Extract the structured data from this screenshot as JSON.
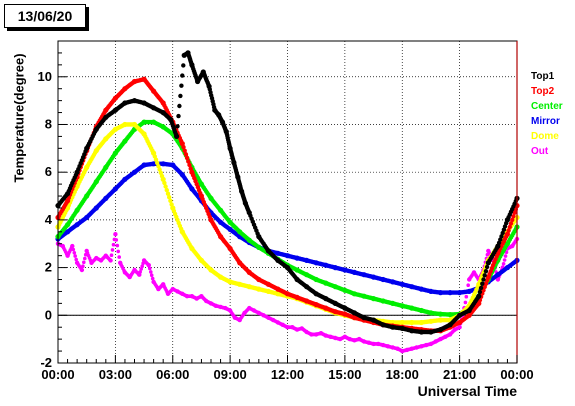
{
  "chart_data": {
    "type": "scatter",
    "title": "13/06/20",
    "xlabel": "Universal Time",
    "ylabel": "Temperature(degree)",
    "xlim": [
      0,
      24
    ],
    "ylim": [
      -2,
      11.5
    ],
    "x_tick_values": [
      0,
      3,
      6,
      9,
      12,
      15,
      18,
      21,
      24
    ],
    "x_tick_labels": [
      "00:00",
      "03:00",
      "06:00",
      "09:00",
      "12:00",
      "15:00",
      "18:00",
      "21:00",
      "00:00"
    ],
    "y_tick_values": [
      -2,
      0,
      2,
      4,
      6,
      8,
      10
    ],
    "y_tick_labels": [
      "-2",
      "0",
      "2",
      "4",
      "6",
      "8",
      "10"
    ],
    "grid": true,
    "legend_position": "right",
    "series": [
      {
        "name": "Top1",
        "color": "#000000",
        "x": [
          0,
          0.5,
          1,
          1.5,
          2,
          2.5,
          3,
          3.5,
          4,
          4.5,
          5,
          5.5,
          5.9,
          6.2,
          6.6,
          6.8,
          7,
          7.3,
          7.6,
          7.9,
          8.2,
          8.4,
          8.6,
          8.8,
          9.0,
          9.2,
          9.4,
          9.6,
          9.8,
          10.0,
          10.5,
          11,
          11.5,
          12,
          12.5,
          13,
          13.5,
          14,
          14.5,
          15,
          15.5,
          16,
          16.5,
          17,
          17.5,
          18,
          18.5,
          19,
          19.5,
          20,
          20.5,
          21,
          21.5,
          22,
          22.5,
          23,
          23.5,
          24
        ],
        "y": [
          4.6,
          5.1,
          6.0,
          7.0,
          7.8,
          8.3,
          8.6,
          8.9,
          9.0,
          8.9,
          8.7,
          8.5,
          8.2,
          7.5,
          10.9,
          11.0,
          10.5,
          9.8,
          10.2,
          9.6,
          8.6,
          8.4,
          8.1,
          7.7,
          7.0,
          6.4,
          5.8,
          5.2,
          4.7,
          4.3,
          3.3,
          2.7,
          2.3,
          2.0,
          1.5,
          1.2,
          0.9,
          0.7,
          0.5,
          0.3,
          0.1,
          -0.1,
          -0.2,
          -0.4,
          -0.5,
          -0.55,
          -0.65,
          -0.7,
          -0.7,
          -0.6,
          -0.4,
          0.0,
          0.2,
          0.8,
          2.2,
          2.9,
          4.0,
          4.9
        ]
      },
      {
        "name": "Top2",
        "color": "#ff0000",
        "x": [
          0,
          0.5,
          1,
          1.5,
          2,
          2.5,
          3,
          3.5,
          4,
          4.5,
          5,
          5.5,
          6,
          6.5,
          7,
          7.5,
          8,
          8.5,
          9,
          9.5,
          10,
          10.5,
          11,
          11.5,
          12,
          12.5,
          13,
          13.5,
          14,
          14.5,
          15,
          15.5,
          16,
          16.5,
          17,
          17.5,
          18,
          18.5,
          19,
          19.5,
          20,
          20.5,
          21,
          21.5,
          22,
          22.5,
          23,
          23.5,
          24
        ],
        "y": [
          4.1,
          4.8,
          5.8,
          6.9,
          7.9,
          8.6,
          9.1,
          9.5,
          9.8,
          9.9,
          9.4,
          8.9,
          8.1,
          7.2,
          6.0,
          5.0,
          4.0,
          3.3,
          2.8,
          2.2,
          1.8,
          1.5,
          1.3,
          1.1,
          0.9,
          0.75,
          0.6,
          0.45,
          0.3,
          0.15,
          0.05,
          -0.1,
          -0.2,
          -0.3,
          -0.4,
          -0.45,
          -0.5,
          -0.55,
          -0.6,
          -0.65,
          -0.65,
          -0.5,
          -0.3,
          0.0,
          0.5,
          1.6,
          2.6,
          3.4,
          4.6
        ]
      },
      {
        "name": "Center",
        "color": "#00ee00",
        "x": [
          0,
          0.5,
          1,
          1.5,
          2,
          2.5,
          3,
          3.5,
          4,
          4.5,
          5,
          5.5,
          6,
          6.5,
          7,
          7.5,
          8,
          8.5,
          9,
          9.5,
          10,
          10.5,
          11,
          11.5,
          12,
          12.5,
          13,
          13.5,
          14,
          14.5,
          15,
          15.5,
          16,
          16.5,
          17,
          17.5,
          18,
          18.5,
          19,
          19.5,
          20,
          20.5,
          21,
          21.5,
          22,
          22.5,
          23,
          23.5,
          24
        ],
        "y": [
          3.3,
          3.8,
          4.4,
          5.0,
          5.6,
          6.2,
          6.8,
          7.3,
          7.8,
          8.1,
          8.1,
          7.9,
          7.6,
          7.0,
          6.2,
          5.5,
          4.9,
          4.4,
          3.9,
          3.5,
          3.15,
          2.85,
          2.6,
          2.35,
          2.1,
          1.9,
          1.7,
          1.5,
          1.35,
          1.2,
          1.05,
          0.9,
          0.8,
          0.7,
          0.6,
          0.5,
          0.4,
          0.3,
          0.2,
          0.1,
          0.05,
          0.03,
          0.05,
          0.3,
          0.8,
          1.5,
          2.3,
          3.0,
          3.7
        ]
      },
      {
        "name": "Mirror",
        "color": "#0000ee",
        "x": [
          0,
          0.5,
          1,
          1.5,
          2,
          2.5,
          3,
          3.5,
          4,
          4.5,
          5,
          5.5,
          6,
          6.5,
          7,
          7.5,
          8,
          8.5,
          9,
          9.5,
          10,
          10.5,
          11,
          11.5,
          12,
          12.5,
          13,
          13.5,
          14,
          14.5,
          15,
          15.5,
          16,
          16.5,
          17,
          17.5,
          18,
          18.5,
          19,
          19.5,
          20,
          20.5,
          21,
          21.5,
          22,
          22.5,
          23,
          23.5,
          24
        ],
        "y": [
          3.2,
          3.5,
          3.8,
          4.1,
          4.5,
          4.9,
          5.3,
          5.7,
          6.0,
          6.3,
          6.35,
          6.35,
          6.3,
          5.9,
          5.3,
          4.8,
          4.3,
          3.9,
          3.6,
          3.3,
          3.05,
          2.85,
          2.7,
          2.6,
          2.5,
          2.4,
          2.3,
          2.2,
          2.1,
          2.0,
          1.9,
          1.8,
          1.7,
          1.6,
          1.5,
          1.4,
          1.3,
          1.2,
          1.1,
          1.0,
          0.95,
          0.95,
          0.95,
          1.0,
          1.15,
          1.4,
          1.7,
          2.0,
          2.3
        ]
      },
      {
        "name": "Dome",
        "color": "#ffff00",
        "x": [
          0,
          0.5,
          1,
          1.5,
          2,
          2.5,
          3,
          3.5,
          4,
          4.5,
          5,
          5.5,
          6,
          6.5,
          7,
          7.5,
          8,
          8.5,
          9,
          9.5,
          10,
          10.5,
          11,
          11.5,
          12,
          12.5,
          13,
          13.5,
          14,
          14.5,
          15,
          15.5,
          16,
          16.5,
          17,
          17.5,
          18,
          18.5,
          19,
          19.5,
          20,
          20.5,
          21,
          21.5,
          22,
          22.5,
          23,
          23.5,
          24
        ],
        "y": [
          3.7,
          4.5,
          5.4,
          6.2,
          6.9,
          7.4,
          7.8,
          8.0,
          8.0,
          7.6,
          6.8,
          5.7,
          4.5,
          3.5,
          2.8,
          2.3,
          1.9,
          1.6,
          1.4,
          1.3,
          1.2,
          1.1,
          1.0,
          0.9,
          0.8,
          0.7,
          0.55,
          0.4,
          0.25,
          0.1,
          0.0,
          -0.1,
          -0.15,
          -0.2,
          -0.25,
          -0.3,
          -0.3,
          -0.3,
          -0.3,
          -0.25,
          -0.2,
          -0.2,
          0.0,
          0.4,
          1.3,
          2.3,
          2.9,
          3.5,
          4.1
        ]
      },
      {
        "name": "Out",
        "color": "#ff00ff",
        "x": [
          0,
          0.25,
          0.5,
          0.75,
          1,
          1.25,
          1.5,
          1.75,
          2,
          2.25,
          2.5,
          2.75,
          3,
          3.25,
          3.5,
          3.75,
          4,
          4.25,
          4.5,
          4.75,
          5,
          5.25,
          5.5,
          5.75,
          6,
          6.25,
          6.5,
          6.75,
          7,
          7.25,
          7.5,
          7.75,
          8,
          8.25,
          8.5,
          8.75,
          9,
          9.25,
          9.5,
          9.75,
          10,
          10.25,
          10.5,
          10.75,
          11,
          11.25,
          11.5,
          11.75,
          12,
          12.25,
          12.5,
          12.75,
          13,
          13.25,
          13.5,
          13.75,
          14,
          14.25,
          14.5,
          14.75,
          15,
          15.25,
          15.5,
          15.75,
          16,
          16.25,
          16.5,
          16.75,
          17,
          17.25,
          17.5,
          17.75,
          18,
          18.25,
          18.5,
          18.75,
          19,
          19.25,
          19.5,
          19.75,
          20,
          20.25,
          20.5,
          20.75,
          21,
          21.25,
          21.5,
          21.75,
          22,
          22.25,
          22.5,
          22.75,
          23,
          23.25,
          23.5,
          23.75,
          24
        ],
        "y": [
          3.0,
          2.9,
          2.5,
          2.9,
          2.2,
          1.9,
          2.7,
          2.2,
          2.4,
          2.3,
          2.5,
          2.3,
          3.4,
          2.2,
          1.8,
          1.6,
          1.9,
          1.7,
          2.3,
          2.1,
          1.4,
          1.1,
          1.3,
          0.9,
          1.1,
          1.0,
          0.9,
          0.8,
          0.8,
          0.7,
          0.8,
          0.6,
          0.5,
          0.4,
          0.35,
          0.3,
          0.2,
          -0.1,
          -0.2,
          0.1,
          0.3,
          0.2,
          0.1,
          0.0,
          -0.1,
          -0.2,
          -0.3,
          -0.4,
          -0.5,
          -0.5,
          -0.6,
          -0.55,
          -0.7,
          -0.8,
          -0.8,
          -0.75,
          -0.85,
          -0.9,
          -0.95,
          -1.0,
          -0.9,
          -1.0,
          -1.05,
          -1.0,
          -1.1,
          -1.15,
          -1.2,
          -1.2,
          -1.25,
          -1.3,
          -1.35,
          -1.4,
          -1.5,
          -1.45,
          -1.4,
          -1.35,
          -1.3,
          -1.25,
          -1.2,
          -1.1,
          -1.0,
          -0.9,
          -0.8,
          -0.6,
          -0.5,
          0.3,
          1.5,
          1.8,
          1.5,
          1.9,
          2.7,
          2.3,
          1.5,
          2.0,
          2.8,
          2.9,
          3.2
        ]
      }
    ]
  }
}
